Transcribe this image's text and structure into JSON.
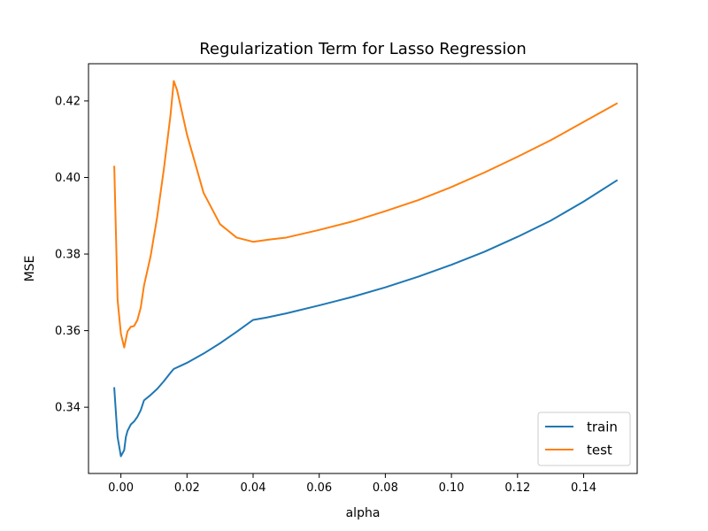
{
  "chart_data": {
    "type": "line",
    "title": "Regularization Term for Lasso Regression",
    "xlabel": "alpha",
    "ylabel": "MSE",
    "xlim": [
      -0.0098,
      0.1562
    ],
    "ylim": [
      0.3227,
      0.4297
    ],
    "xticks": [
      0.0,
      0.02,
      0.04,
      0.06,
      0.08,
      0.1,
      0.12,
      0.14
    ],
    "xtick_labels": [
      "0.00",
      "0.02",
      "0.04",
      "0.06",
      "0.08",
      "0.10",
      "0.12",
      "0.14"
    ],
    "yticks": [
      0.34,
      0.36,
      0.38,
      0.4,
      0.42
    ],
    "ytick_labels": [
      "0.34",
      "0.36",
      "0.38",
      "0.40",
      "0.42"
    ],
    "grid": false,
    "legend_position": "lower-right",
    "series": [
      {
        "name": "train",
        "color": "#1f77b4",
        "points": [
          [
            -0.002,
            0.345
          ],
          [
            -0.0015,
            0.3385
          ],
          [
            -0.001,
            0.3322
          ],
          [
            0.0,
            0.3272
          ],
          [
            0.001,
            0.3288
          ],
          [
            0.0015,
            0.3322
          ],
          [
            0.002,
            0.3338
          ],
          [
            0.003,
            0.3355
          ],
          [
            0.004,
            0.3363
          ],
          [
            0.005,
            0.3375
          ],
          [
            0.006,
            0.3392
          ],
          [
            0.007,
            0.3418
          ],
          [
            0.009,
            0.3432
          ],
          [
            0.011,
            0.3448
          ],
          [
            0.013,
            0.3468
          ],
          [
            0.015,
            0.349
          ],
          [
            0.016,
            0.35
          ],
          [
            0.018,
            0.3508
          ],
          [
            0.02,
            0.3516
          ],
          [
            0.025,
            0.354
          ],
          [
            0.03,
            0.3567
          ],
          [
            0.035,
            0.3597
          ],
          [
            0.04,
            0.3628
          ],
          [
            0.044,
            0.3634
          ],
          [
            0.05,
            0.3645
          ],
          [
            0.06,
            0.3666
          ],
          [
            0.07,
            0.3688
          ],
          [
            0.08,
            0.3713
          ],
          [
            0.09,
            0.3741
          ],
          [
            0.1,
            0.3772
          ],
          [
            0.11,
            0.3806
          ],
          [
            0.12,
            0.3845
          ],
          [
            0.13,
            0.3887
          ],
          [
            0.14,
            0.3937
          ],
          [
            0.15,
            0.3992
          ]
        ]
      },
      {
        "name": "test",
        "color": "#ff7f0e",
        "points": [
          [
            -0.002,
            0.4028
          ],
          [
            -0.001,
            0.368
          ],
          [
            0.0,
            0.3592
          ],
          [
            0.001,
            0.3556
          ],
          [
            0.002,
            0.3598
          ],
          [
            0.003,
            0.361
          ],
          [
            0.004,
            0.3612
          ],
          [
            0.005,
            0.3628
          ],
          [
            0.006,
            0.366
          ],
          [
            0.007,
            0.3718
          ],
          [
            0.009,
            0.3795
          ],
          [
            0.011,
            0.3898
          ],
          [
            0.013,
            0.4022
          ],
          [
            0.015,
            0.4162
          ],
          [
            0.016,
            0.4252
          ],
          [
            0.017,
            0.4228
          ],
          [
            0.02,
            0.4112
          ],
          [
            0.025,
            0.396
          ],
          [
            0.03,
            0.3878
          ],
          [
            0.035,
            0.3843
          ],
          [
            0.04,
            0.3832
          ],
          [
            0.045,
            0.3838
          ],
          [
            0.05,
            0.3843
          ],
          [
            0.06,
            0.3863
          ],
          [
            0.07,
            0.3885
          ],
          [
            0.08,
            0.3912
          ],
          [
            0.09,
            0.3941
          ],
          [
            0.1,
            0.3975
          ],
          [
            0.11,
            0.4013
          ],
          [
            0.12,
            0.4054
          ],
          [
            0.13,
            0.4097
          ],
          [
            0.14,
            0.4145
          ],
          [
            0.15,
            0.4193
          ]
        ]
      }
    ]
  }
}
